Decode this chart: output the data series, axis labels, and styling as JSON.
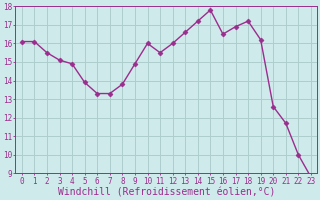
{
  "x": [
    0,
    1,
    2,
    3,
    4,
    5,
    6,
    7,
    8,
    9,
    10,
    11,
    12,
    13,
    14,
    15,
    16,
    17,
    18,
    19,
    20,
    21,
    22,
    23
  ],
  "y": [
    16.1,
    16.1,
    15.5,
    15.1,
    14.9,
    13.9,
    13.3,
    13.3,
    13.8,
    14.9,
    16.0,
    15.5,
    16.0,
    16.6,
    17.2,
    17.8,
    16.5,
    16.9,
    17.2,
    16.2,
    12.6,
    11.7,
    10.0,
    8.8
  ],
  "xlabel": "Windchill (Refroidissement éolien,°C)",
  "ylim": [
    9,
    18
  ],
  "yticks": [
    9,
    10,
    11,
    12,
    13,
    14,
    15,
    16,
    17,
    18
  ],
  "xticks": [
    0,
    1,
    2,
    3,
    4,
    5,
    6,
    7,
    8,
    9,
    10,
    11,
    12,
    13,
    14,
    15,
    16,
    17,
    18,
    19,
    20,
    21,
    22,
    23
  ],
  "line_color": "#9b2d8e",
  "marker": "D",
  "marker_size": 2.5,
  "bg_color": "#ceeaea",
  "grid_color": "#aecece",
  "tick_label_fontsize": 5.5,
  "xlabel_fontsize": 7,
  "line_width": 1.0
}
